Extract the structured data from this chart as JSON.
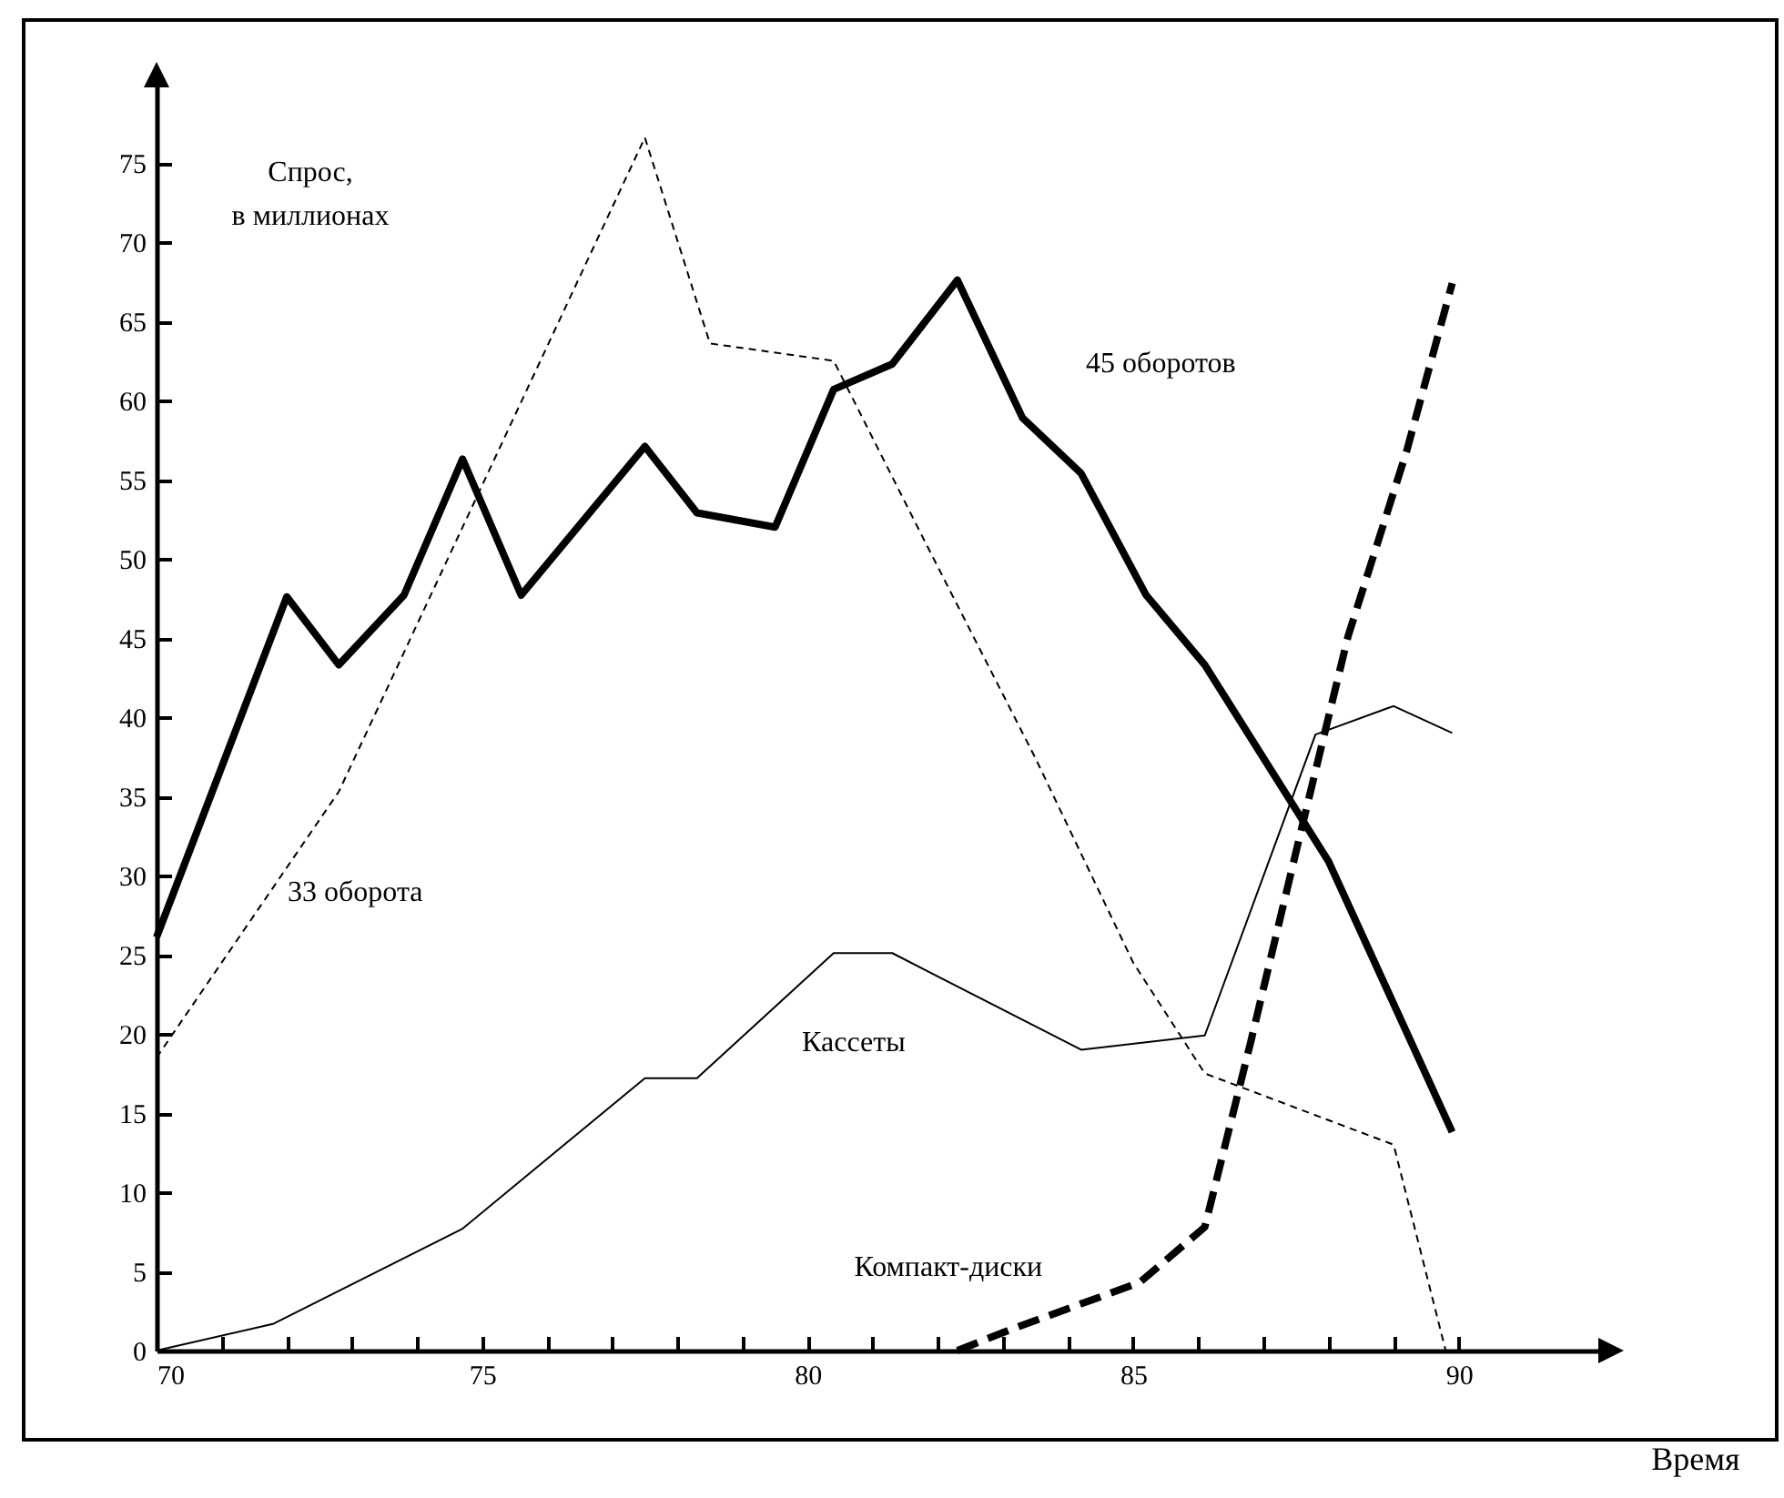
{
  "chart_data": {
    "type": "line",
    "ylabel": "Спрос,\nв миллионах",
    "xlabel": "Время",
    "xlim": [
      70,
      92.2
    ],
    "ylim": [
      0,
      80
    ],
    "xticks": [
      70,
      {
        "value": 71,
        "label": null
      },
      {
        "value": 72,
        "label": null
      },
      {
        "value": 73,
        "label": null
      },
      {
        "value": 74,
        "label": null
      },
      75,
      {
        "value": 76,
        "label": null
      },
      {
        "value": 77,
        "label": null
      },
      {
        "value": 78,
        "label": null
      },
      {
        "value": 79,
        "label": null
      },
      80,
      {
        "value": 81,
        "label": null
      },
      {
        "value": 82,
        "label": null
      },
      {
        "value": 83,
        "label": null
      },
      {
        "value": 84,
        "label": null
      },
      85,
      {
        "value": 86,
        "label": null
      },
      {
        "value": 87,
        "label": null
      },
      {
        "value": 88,
        "label": null
      },
      {
        "value": 89,
        "label": null
      },
      90
    ],
    "yticks": [
      0,
      5,
      10,
      15,
      20,
      25,
      30,
      35,
      40,
      45,
      50,
      55,
      60,
      65,
      70,
      75
    ],
    "grid": false,
    "marker": "none",
    "series": [
      {
        "name": "45 оборотов",
        "color": "#000000",
        "line_style": "solid",
        "x": [
          70,
          72,
          72.8,
          73.8,
          74.7,
          75.6,
          77.5,
          78.3,
          79.5,
          80.4,
          81.3,
          82.3,
          83.3,
          84.2,
          85.2,
          86.1,
          88,
          89.9
        ],
        "values": [
          26.1,
          47.6,
          43.3,
          47.7,
          56.3,
          47.7,
          57.1,
          52.9,
          52,
          60.7,
          62.3,
          67.6,
          58.9,
          55.4,
          47.7,
          43.3,
          30.9,
          13.8
        ]
      },
      {
        "name": "33 оборота",
        "color": "#000000",
        "line_style": "dashed",
        "x": [
          70,
          72.8,
          77.5,
          78.5,
          80.4,
          81.8,
          83.5,
          85,
          86.1,
          89,
          89.8
        ],
        "values": [
          18.5,
          35.3,
          76.6,
          63.6,
          62.5,
          51.1,
          37.4,
          24.5,
          17.5,
          13,
          0
        ]
      },
      {
        "name": "Кассеты",
        "color": "#000000",
        "line_style": "solid",
        "x": [
          70,
          71.8,
          74.7,
          77.5,
          78.3,
          80.4,
          81.3,
          84.2,
          86.1,
          87.8,
          89,
          89.9
        ],
        "values": [
          0,
          1.7,
          7.7,
          17.2,
          17.2,
          25.1,
          25.1,
          19,
          19.9,
          38.9,
          40.7,
          39
        ]
      },
      {
        "name": "Компакт-диски",
        "color": "#000000",
        "line_style": "dashed",
        "x": [
          82.3,
          83.1,
          85.1,
          86.1,
          86.8,
          87.6,
          88.3,
          89.2,
          89.9
        ],
        "values": [
          0,
          1.3,
          4.3,
          7.8,
          19.4,
          33.2,
          45.1,
          56.8,
          67.4
        ]
      }
    ]
  }
}
